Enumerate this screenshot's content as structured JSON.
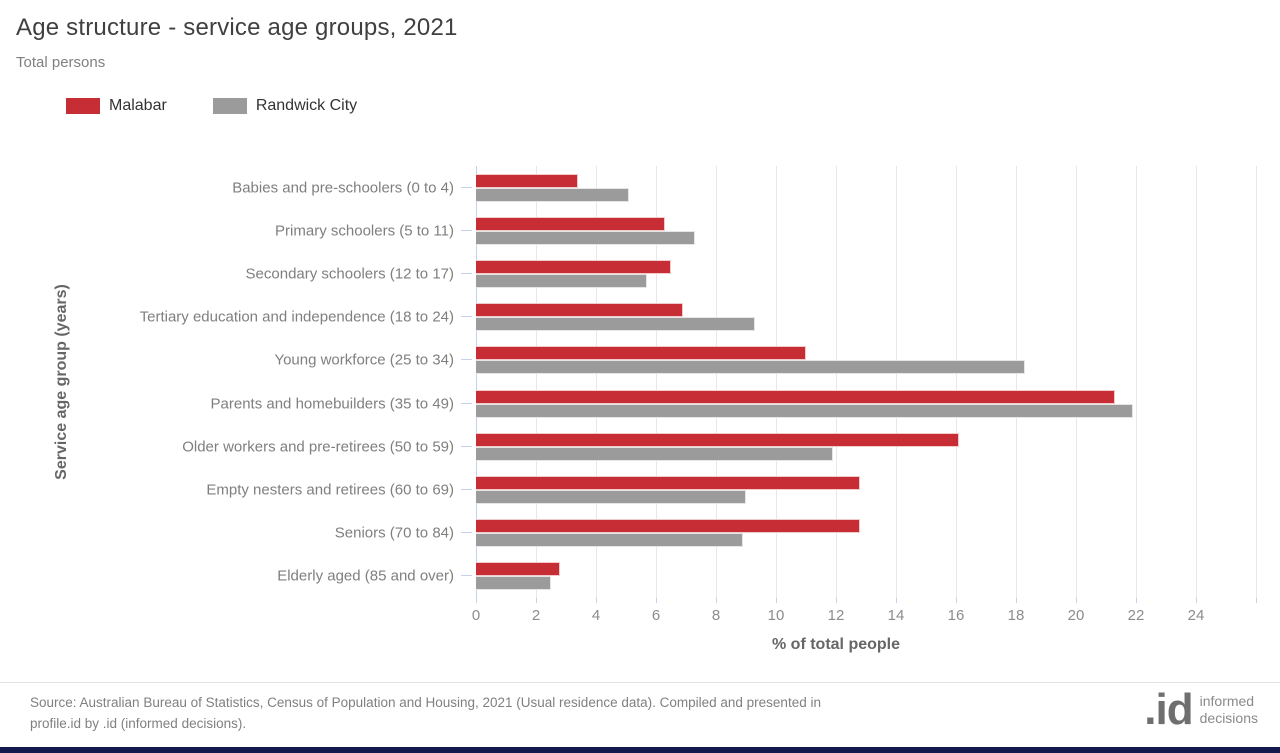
{
  "header": {
    "title": "Age structure - service age groups, 2021",
    "subtitle": "Total persons"
  },
  "legend": {
    "items": [
      {
        "label": "Malabar",
        "color": "#c62d34"
      },
      {
        "label": "Randwick City",
        "color": "#9b9b9b"
      }
    ]
  },
  "chart_data": {
    "type": "bar",
    "orientation": "horizontal",
    "title": "Age structure - service age groups, 2021",
    "subtitle": "Total persons",
    "xlabel": "% of total people",
    "ylabel": "Service age group (years)",
    "xlim": [
      0,
      26
    ],
    "xtick_step": 2,
    "xtick_label_max": 24,
    "grid": true,
    "legend_position": "top-left",
    "categories": [
      "Babies and pre-schoolers (0 to 4)",
      "Primary schoolers (5 to 11)",
      "Secondary schoolers (12 to 17)",
      "Tertiary education and independence (18 to 24)",
      "Young workforce (25 to 34)",
      "Parents and homebuilders (35 to 49)",
      "Older workers and pre-retirees (50 to 59)",
      "Empty nesters and retirees (60 to 69)",
      "Seniors (70 to 84)",
      "Elderly aged (85 and over)"
    ],
    "series": [
      {
        "name": "Malabar",
        "color": "#c62d34",
        "values": [
          3.4,
          6.3,
          6.5,
          6.9,
          11.0,
          21.3,
          16.1,
          12.8,
          12.8,
          2.8
        ]
      },
      {
        "name": "Randwick City",
        "color": "#9b9b9b",
        "values": [
          5.1,
          7.3,
          5.7,
          9.3,
          18.3,
          21.9,
          11.9,
          9.0,
          8.9,
          2.5
        ]
      }
    ]
  },
  "axes": {
    "x_title": "% of total people",
    "y_title": "Service age group (years)"
  },
  "footer": {
    "source_line1": "Source: Australian Bureau of Statistics, Census of Population and Housing, 2021 (Usual residence data). Compiled and presented in",
    "source_line2": "profile.id by .id (informed decisions).",
    "bar_color": "#151a4d"
  },
  "logo": {
    "mark": ".id",
    "line1": "informed",
    "line2": "decisions"
  },
  "colors": {
    "axis_line": "#c5d0ee",
    "gridline": "#e8e8e8"
  }
}
